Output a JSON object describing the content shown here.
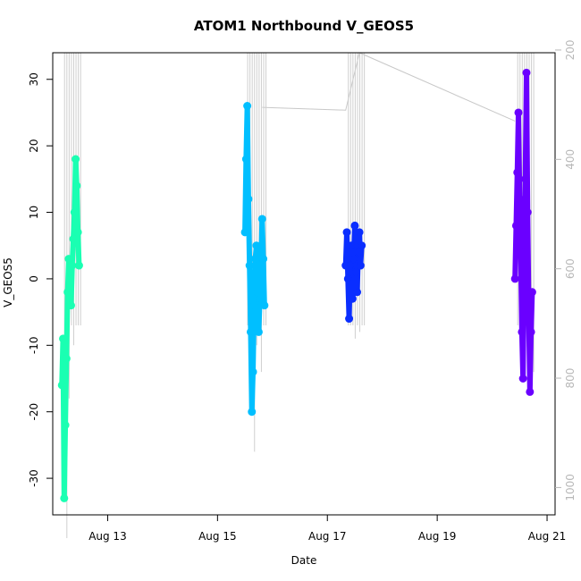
{
  "chart_data": {
    "type": "scatter",
    "title": "ATOM1 Northbound V_GEOS5",
    "xlabel": "Date",
    "ylabel": "V_GEOS5",
    "x_range": [
      "2016-08-12T00:00",
      "2016-08-21T03:30"
    ],
    "x_ticks": [
      {
        "date": "2016-08-13",
        "label": "Aug 13"
      },
      {
        "date": "2016-08-15",
        "label": "Aug 15"
      },
      {
        "date": "2016-08-17",
        "label": "Aug 17"
      },
      {
        "date": "2016-08-19",
        "label": "Aug 19"
      },
      {
        "date": "2016-08-21",
        "label": "Aug 21"
      }
    ],
    "ylim": [
      -35.5,
      34
    ],
    "y_ticks": [
      -30,
      -20,
      -10,
      0,
      10,
      20,
      30
    ],
    "y2_label": "",
    "y2_range": [
      205,
      1050
    ],
    "y2_reversed": true,
    "y2_ticks": [
      200,
      400,
      600,
      800,
      1000
    ],
    "y2_color": "#b8b8b8",
    "grid": false,
    "legend": "none",
    "series": [
      {
        "color": "#1affb2",
        "points": [
          [
            "2016-08-12T04:00",
            -16
          ],
          [
            "2016-08-12T04:30",
            -9
          ],
          [
            "2016-08-12T05:00",
            -33
          ],
          [
            "2016-08-12T05:30",
            -22
          ],
          [
            "2016-08-12T06:00",
            -12
          ],
          [
            "2016-08-12T06:30",
            -2
          ],
          [
            "2016-08-12T07:00",
            3
          ],
          [
            "2016-08-12T07:30",
            1
          ],
          [
            "2016-08-12T08:00",
            -4
          ],
          [
            "2016-08-12T08:30",
            2
          ],
          [
            "2016-08-12T09:00",
            6
          ],
          [
            "2016-08-12T09:30",
            10
          ],
          [
            "2016-08-12T10:00",
            18
          ],
          [
            "2016-08-12T10:30",
            14
          ],
          [
            "2016-08-12T11:00",
            7
          ],
          [
            "2016-08-12T11:30",
            2
          ]
        ]
      },
      {
        "color": "#00bfff",
        "points": [
          [
            "2016-08-15T12:00",
            7
          ],
          [
            "2016-08-15T12:30",
            18
          ],
          [
            "2016-08-15T13:00",
            26
          ],
          [
            "2016-08-15T13:30",
            12
          ],
          [
            "2016-08-15T14:00",
            2
          ],
          [
            "2016-08-15T14:30",
            -8
          ],
          [
            "2016-08-15T15:00",
            -20
          ],
          [
            "2016-08-15T15:30",
            -14
          ],
          [
            "2016-08-15T16:00",
            -4
          ],
          [
            "2016-08-15T16:30",
            3
          ],
          [
            "2016-08-15T17:00",
            5
          ],
          [
            "2016-08-15T17:30",
            -2
          ],
          [
            "2016-08-15T18:00",
            -8
          ],
          [
            "2016-08-15T18:30",
            -3
          ],
          [
            "2016-08-15T19:00",
            2
          ],
          [
            "2016-08-15T19:30",
            9
          ],
          [
            "2016-08-15T20:00",
            3
          ],
          [
            "2016-08-15T20:30",
            -4
          ]
        ]
      },
      {
        "color": "#0a2eff",
        "points": [
          [
            "2016-08-17T08:00",
            2
          ],
          [
            "2016-08-17T08:30",
            7
          ],
          [
            "2016-08-17T09:00",
            0
          ],
          [
            "2016-08-17T09:30",
            -6
          ],
          [
            "2016-08-17T10:00",
            2
          ],
          [
            "2016-08-17T10:30",
            5
          ],
          [
            "2016-08-17T11:00",
            -3
          ],
          [
            "2016-08-17T11:30",
            3
          ],
          [
            "2016-08-17T12:00",
            8
          ],
          [
            "2016-08-17T12:30",
            1
          ],
          [
            "2016-08-17T13:00",
            -2
          ],
          [
            "2016-08-17T13:30",
            4
          ],
          [
            "2016-08-17T14:00",
            7
          ],
          [
            "2016-08-17T14:30",
            2
          ],
          [
            "2016-08-17T15:00",
            5
          ]
        ]
      },
      {
        "color": "#6a00ff",
        "points": [
          [
            "2016-08-20T10:00",
            0
          ],
          [
            "2016-08-20T10:30",
            8
          ],
          [
            "2016-08-20T11:00",
            16
          ],
          [
            "2016-08-20T11:30",
            25
          ],
          [
            "2016-08-20T12:00",
            12
          ],
          [
            "2016-08-20T12:30",
            4
          ],
          [
            "2016-08-20T13:00",
            -8
          ],
          [
            "2016-08-20T13:30",
            -15
          ],
          [
            "2016-08-20T14:00",
            2
          ],
          [
            "2016-08-20T14:30",
            15
          ],
          [
            "2016-08-20T15:00",
            31
          ],
          [
            "2016-08-20T15:30",
            10
          ],
          [
            "2016-08-20T16:00",
            -5
          ],
          [
            "2016-08-20T16:30",
            -17
          ],
          [
            "2016-08-20T17:00",
            -8
          ],
          [
            "2016-08-20T17:30",
            -2
          ]
        ]
      }
    ],
    "altitude_track": {
      "color": "#c8c8c8",
      "points": [
        [
          "2016-08-15T19:30",
          305
        ],
        [
          "2016-08-17T08:00",
          310
        ],
        [
          "2016-08-17T14:00",
          140
        ],
        [
          "2016-08-20T10:00",
          330
        ]
      ]
    }
  }
}
